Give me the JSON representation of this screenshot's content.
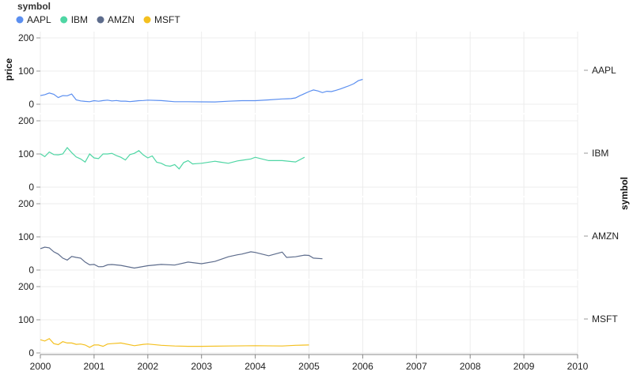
{
  "chart_data": {
    "type": "line",
    "layout": "faceted-rows",
    "legend": {
      "title": "symbol",
      "placement": "top-left",
      "items": [
        {
          "name": "AAPL",
          "color": "#5b8ff0"
        },
        {
          "name": "IBM",
          "color": "#4fd6a4"
        },
        {
          "name": "AMZN",
          "color": "#5d6c8c"
        },
        {
          "name": "MSFT",
          "color": "#f4c020"
        }
      ]
    },
    "y_title": "price",
    "facet_title": "symbol",
    "ylim": [
      0,
      200
    ],
    "y_ticks": [
      "0",
      "100",
      "200"
    ],
    "xlim": [
      2000,
      2010
    ],
    "x_ticks": [
      "2000",
      "2001",
      "2002",
      "2003",
      "2004",
      "2005",
      "2006",
      "2007",
      "2008",
      "2009",
      "2010"
    ],
    "grid": true,
    "series": [
      {
        "name": "AAPL",
        "color": "#5b8ff0",
        "x": [
          2000.0,
          2000.083,
          2000.167,
          2000.25,
          2000.333,
          2000.417,
          2000.5,
          2000.583,
          2000.667,
          2000.75,
          2000.833,
          2000.917,
          2001.0,
          2001.083,
          2001.167,
          2001.25,
          2001.333,
          2001.417,
          2001.5,
          2001.583,
          2001.667,
          2001.75,
          2001.833,
          2001.917,
          2002.0,
          2002.25,
          2002.5,
          2002.75,
          2003.0,
          2003.25,
          2003.5,
          2003.75,
          2004.0,
          2004.25,
          2004.5,
          2004.583,
          2004.667,
          2004.75,
          2004.833,
          2004.917,
          2005.0,
          2005.083,
          2005.167,
          2005.25,
          2005.333,
          2005.417,
          2005.5,
          2005.583,
          2005.667,
          2005.75,
          2005.833,
          2005.917,
          2006.0
        ],
        "y": [
          25.9,
          28.7,
          33.9,
          30.0,
          20.0,
          26.0,
          25.5,
          30.8,
          13.0,
          10.0,
          8.5,
          7.5,
          10.8,
          9.0,
          11.0,
          12.5,
          10.0,
          11.3,
          9.4,
          9.4,
          7.8,
          9.4,
          10.7,
          11.2,
          12.4,
          11.0,
          7.6,
          7.5,
          7.2,
          7.0,
          9.0,
          10.6,
          10.7,
          13.0,
          16.0,
          16.5,
          17.0,
          19.0,
          26.0,
          32.0,
          38.0,
          43.0,
          40.0,
          35.0,
          39.0,
          38.0,
          42.0,
          46.0,
          51.0,
          56.0,
          62.0,
          71.0,
          75.0
        ]
      },
      {
        "name": "IBM",
        "color": "#4fd6a4",
        "x": [
          2000.0,
          2000.083,
          2000.167,
          2000.25,
          2000.333,
          2000.417,
          2000.5,
          2000.583,
          2000.667,
          2000.75,
          2000.833,
          2000.917,
          2001.0,
          2001.083,
          2001.167,
          2001.25,
          2001.333,
          2001.417,
          2001.5,
          2001.583,
          2001.667,
          2001.75,
          2001.833,
          2001.917,
          2002.0,
          2002.083,
          2002.167,
          2002.25,
          2002.333,
          2002.417,
          2002.5,
          2002.583,
          2002.667,
          2002.75,
          2002.833,
          2002.917,
          2003.0,
          2003.25,
          2003.333,
          2003.5,
          2003.667,
          2003.75,
          2003.917,
          2004.0,
          2004.25,
          2004.5,
          2004.75,
          2004.917
        ],
        "y": [
          100.5,
          92.0,
          106.0,
          98.0,
          97.5,
          100.0,
          119.0,
          104.0,
          91.0,
          85.0,
          75.5,
          100.0,
          88.0,
          86.0,
          100.0,
          100.0,
          102.0,
          95.0,
          90.0,
          82.0,
          98.0,
          102.0,
          110.0,
          97.0,
          88.0,
          94.0,
          75.0,
          72.0,
          65.0,
          63.0,
          68.0,
          55.0,
          74.0,
          80.0,
          70.0,
          71.0,
          72.0,
          78.0,
          76.0,
          72.0,
          79.0,
          81.0,
          85.0,
          90.0,
          80.0,
          80.0,
          76.0,
          90.0
        ]
      },
      {
        "name": "AMZN",
        "color": "#5d6c8c",
        "x": [
          2000.0,
          2000.083,
          2000.167,
          2000.25,
          2000.333,
          2000.417,
          2000.5,
          2000.583,
          2000.667,
          2000.75,
          2000.833,
          2000.917,
          2001.0,
          2001.083,
          2001.167,
          2001.25,
          2001.333,
          2001.5,
          2001.75,
          2002.0,
          2002.25,
          2002.5,
          2002.75,
          2003.0,
          2003.25,
          2003.5,
          2003.667,
          2003.75,
          2003.917,
          2004.0,
          2004.25,
          2004.5,
          2004.583,
          2004.75,
          2004.917,
          2005.0,
          2005.083,
          2005.25
        ],
        "y": [
          64.6,
          69.0,
          67.0,
          55.0,
          48.0,
          36.0,
          30.0,
          41.0,
          38.0,
          36.0,
          24.0,
          15.6,
          17.0,
          10.0,
          10.2,
          15.8,
          16.7,
          14.0,
          6.0,
          13.0,
          17.0,
          15.0,
          24.0,
          19.0,
          26.0,
          40.0,
          46.0,
          48.0,
          55.0,
          53.0,
          43.0,
          54.0,
          38.0,
          40.0,
          45.0,
          44.0,
          36.0,
          34.0
        ]
      },
      {
        "name": "MSFT",
        "color": "#f4c020",
        "x": [
          2000.0,
          2000.083,
          2000.167,
          2000.25,
          2000.333,
          2000.417,
          2000.5,
          2000.583,
          2000.667,
          2000.75,
          2000.833,
          2000.917,
          2001.0,
          2001.083,
          2001.167,
          2001.25,
          2001.333,
          2001.5,
          2001.75,
          2001.917,
          2002.0,
          2002.25,
          2002.5,
          2002.75,
          2003.0,
          2003.5,
          2004.0,
          2004.5,
          2004.75,
          2005.0
        ],
        "y": [
          39.8,
          36.0,
          43.0,
          28.0,
          25.0,
          34.0,
          30.0,
          30.0,
          26.0,
          27.0,
          24.0,
          17.0,
          24.0,
          24.0,
          20.0,
          27.0,
          28.0,
          30.0,
          22.0,
          26.0,
          27.0,
          23.0,
          21.0,
          20.0,
          20.0,
          21.0,
          22.0,
          21.0,
          23.0,
          24.0
        ]
      }
    ]
  }
}
